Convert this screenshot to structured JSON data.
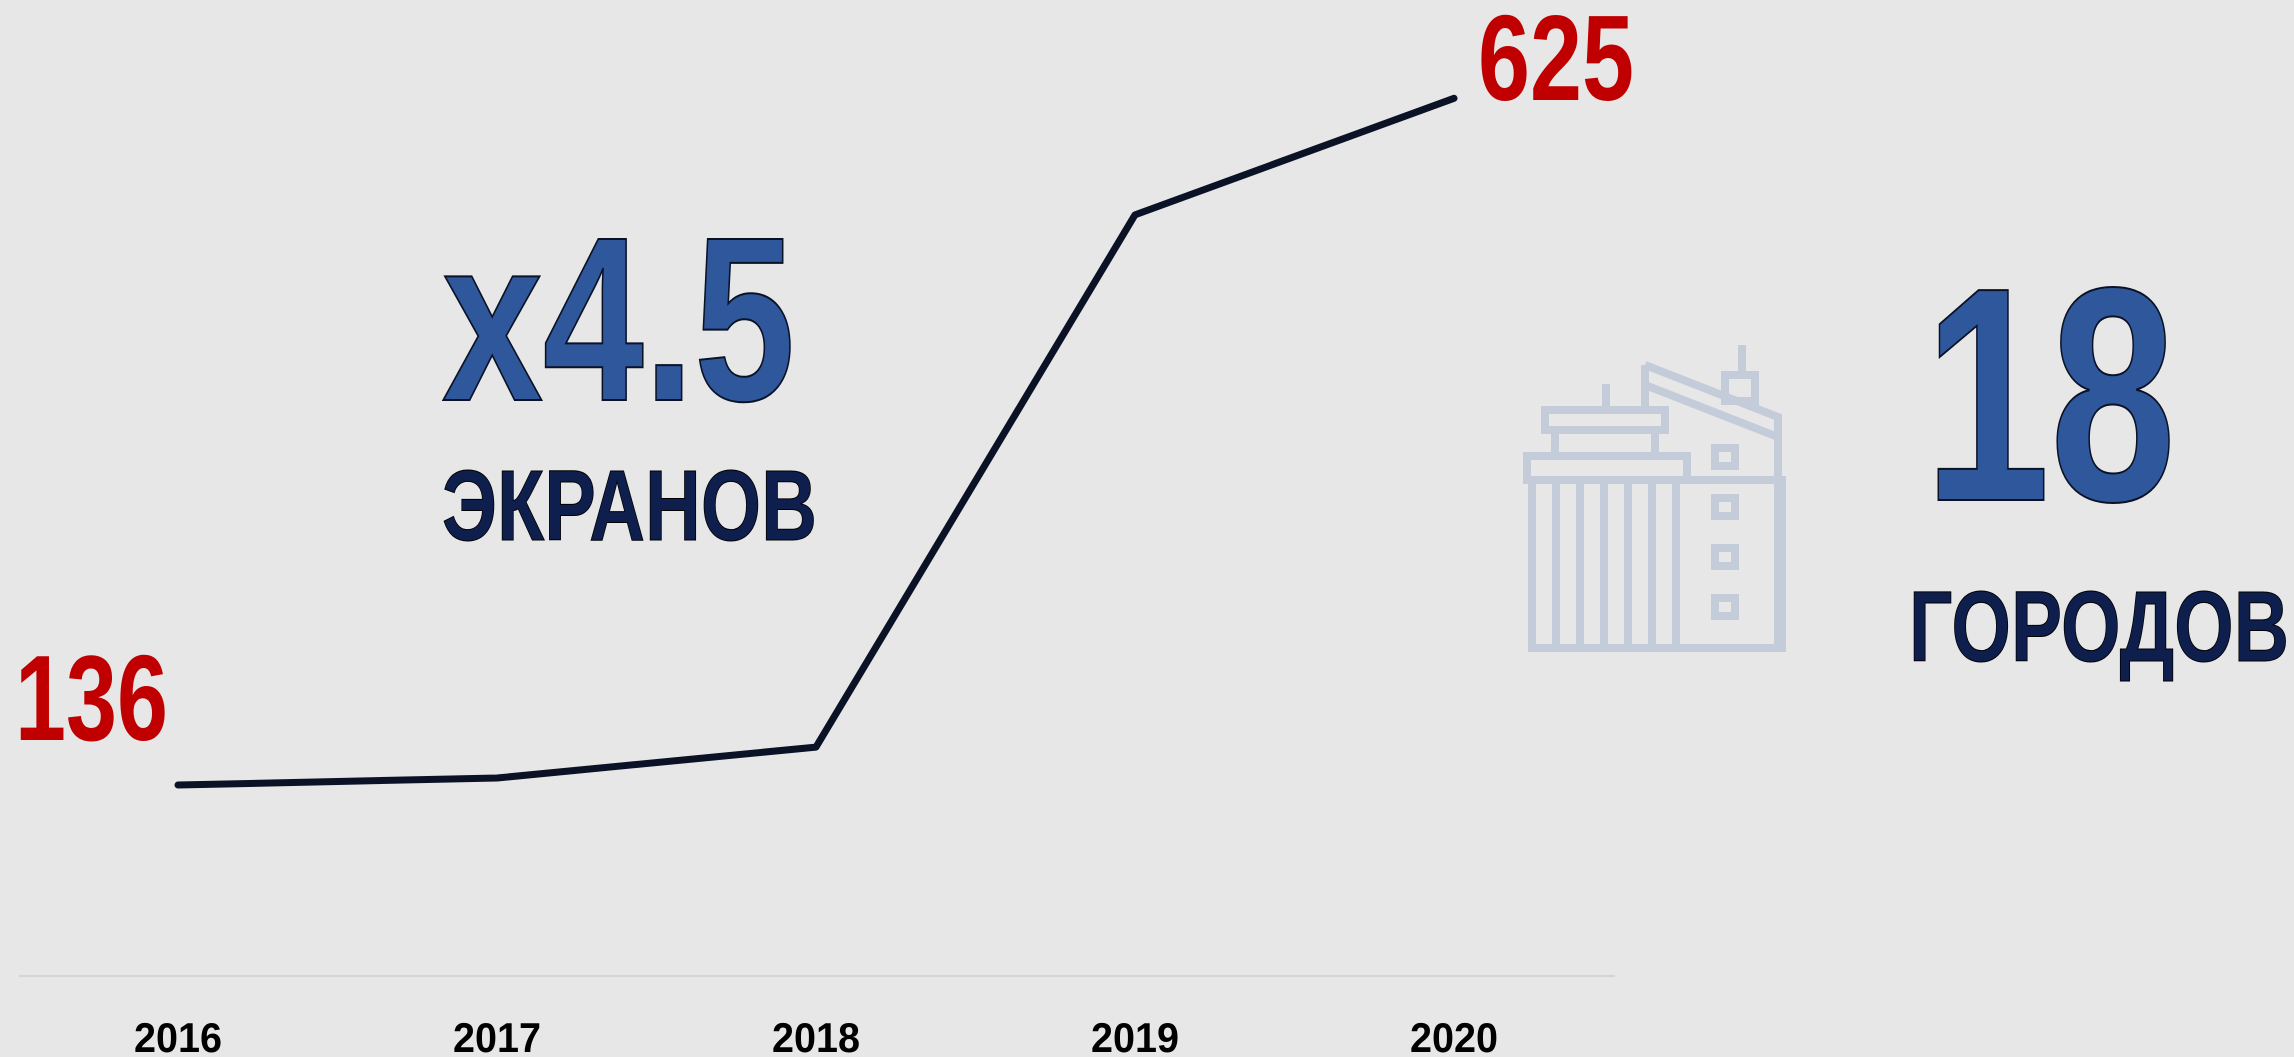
{
  "chart_data": {
    "type": "line",
    "categories": [
      "2016",
      "2017",
      "2018",
      "2019",
      "2020"
    ],
    "values": [
      136,
      141,
      163,
      542,
      625
    ],
    "color": "#0b1226",
    "label_color": "#c00000",
    "ylim": [
      0,
      695
    ],
    "annotations": [
      {
        "text": "x4.5",
        "subtext": "ЭКРАНОВ"
      },
      {
        "text": "18",
        "subtext": "ГОРОДОВ"
      }
    ]
  }
}
